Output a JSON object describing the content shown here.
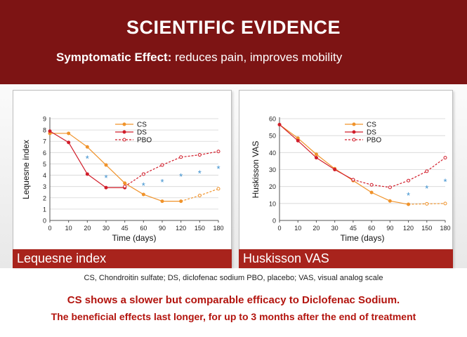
{
  "header": {
    "title": "SCIENTIFIC EVIDENCE",
    "subtitle_bold": "Symptomatic Effect:",
    "subtitle_rest": " reduces pain, improves mobility"
  },
  "footer": {
    "abbreviations": "CS, Chondroitin sulfate; DS, diclofenac sodium  PBO, placebo; VAS, visual analog scale",
    "conclusion1": "CS shows a slower but comparable efficacy to Diclofenac Sodium.",
    "conclusion2": "The beneficial effects last longer, for up to 3 months after the end of treatment"
  },
  "colors": {
    "banner": "#7d1414",
    "caption": "#a8231c",
    "CS": "#f0932b",
    "DS": "#d11d2a",
    "PBO": "#d11d2a",
    "asterisk": "#3a8fcf",
    "conclusion": "#b3140e"
  },
  "chart_data": [
    {
      "type": "line",
      "caption": "Lequesne index",
      "xlabel": "Time (days)",
      "ylabel": "Lequesne index",
      "categories": [
        "0",
        "10",
        "20",
        "30",
        "45",
        "60",
        "90",
        "120",
        "150",
        "180"
      ],
      "ylim": [
        0,
        9
      ],
      "yticks": [
        "0",
        "1",
        "2",
        "3",
        "4",
        "5",
        "6",
        "7",
        "8",
        "9"
      ],
      "legend_position": "top-center",
      "series": [
        {
          "name": "CS",
          "style": "solid",
          "values": [
            7.7,
            7.7,
            6.5,
            4.9,
            3.3,
            2.3,
            1.7,
            1.7,
            2.2,
            2.8
          ],
          "dashed_from_index": 7
        },
        {
          "name": "DS",
          "style": "solid",
          "values": [
            7.9,
            6.9,
            4.1,
            2.9,
            2.9,
            null,
            null,
            null,
            null,
            null
          ]
        },
        {
          "name": "PBO",
          "style": "dashed",
          "values": [
            null,
            null,
            null,
            null,
            3.0,
            4.1,
            4.9,
            5.6,
            5.8,
            6.1
          ]
        }
      ],
      "significance_marks": [
        {
          "category": "20",
          "y": 5.5,
          "text": "*"
        },
        {
          "category": "30",
          "y": 3.8,
          "text": "*"
        },
        {
          "category": "60",
          "y": 3.1,
          "text": "*"
        },
        {
          "category": "90",
          "y": 3.4,
          "text": "*"
        },
        {
          "category": "120",
          "y": 3.9,
          "text": "*"
        },
        {
          "category": "150",
          "y": 4.2,
          "text": "*"
        },
        {
          "category": "180",
          "y": 4.6,
          "text": "*"
        }
      ]
    },
    {
      "type": "line",
      "caption": "Huskisson VAS",
      "xlabel": "Time (days)",
      "ylabel": "Huskisson VAS",
      "categories": [
        "0",
        "10",
        "20",
        "30",
        "45",
        "60",
        "90",
        "120",
        "150",
        "180"
      ],
      "ylim": [
        0,
        60
      ],
      "yticks": [
        "0",
        "10",
        "20",
        "30",
        "40",
        "50",
        "60"
      ],
      "legend_position": "top-center",
      "series": [
        {
          "name": "CS",
          "style": "solid",
          "values": [
            56.5,
            48.5,
            39,
            30.5,
            23.5,
            16.5,
            11.5,
            9.5,
            9.8,
            10
          ],
          "dashed_from_index": 7
        },
        {
          "name": "DS",
          "style": "solid",
          "values": [
            56.5,
            47,
            37,
            30,
            24,
            null,
            null,
            null,
            null,
            null
          ]
        },
        {
          "name": "PBO",
          "style": "dashed",
          "values": [
            null,
            null,
            null,
            null,
            24,
            21,
            19.5,
            23.5,
            29,
            37
          ]
        }
      ],
      "significance_marks": [
        {
          "category": "120",
          "y": 15,
          "text": "*"
        },
        {
          "category": "150",
          "y": 19,
          "text": "*"
        },
        {
          "category": "180",
          "y": 23,
          "text": "*"
        }
      ]
    }
  ]
}
